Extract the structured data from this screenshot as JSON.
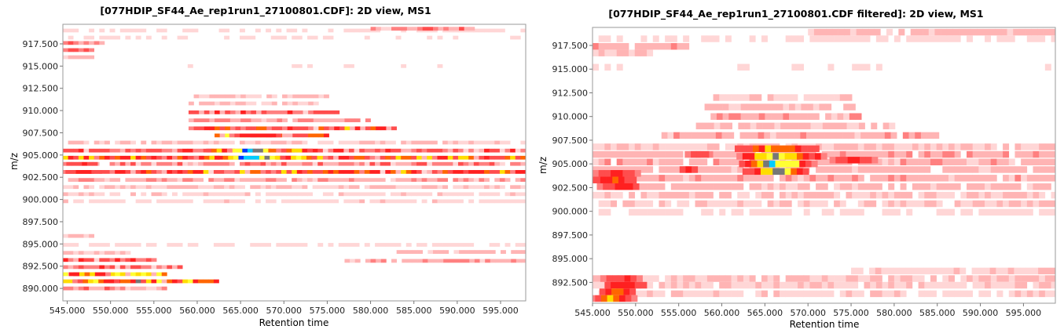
{
  "chart_data": [
    {
      "type": "heatmap",
      "title": "[077HDIP_SF44_Ae_rep1run1_27100801.CDF]: 2D view, MS1",
      "xlabel": "Retention time",
      "ylabel": "m/z",
      "xlim": [
        544.5,
        597.9
      ],
      "ylim": [
        888.6,
        919.7
      ],
      "xticks": [
        "545.000",
        "550.000",
        "555.000",
        "560.000",
        "565.000",
        "570.000",
        "575.000",
        "580.000",
        "585.000",
        "590.000",
        "595.000"
      ],
      "yticks": [
        "890.000",
        "892.500",
        "895.000",
        "897.500",
        "900.000",
        "902.500",
        "905.000",
        "907.500",
        "910.000",
        "912.500",
        "915.000",
        "917.500"
      ],
      "grid": false,
      "colormap": [
        "#ffffff",
        "#ffd6d6",
        "#ff8080",
        "#ff2020",
        "#ff6600",
        "#ffdd00",
        "#ffff33",
        "#0033ff",
        "#00ccff",
        "#777777"
      ],
      "cell_size": {
        "rt": 0.6,
        "mz": 0.42
      },
      "traces": [
        {
          "mz": 919.0,
          "rt": [
            544.5,
            597.9
          ],
          "level": 0.07
        },
        {
          "mz": 918.2,
          "rt": [
            544.5,
            597.9
          ],
          "level": 0.06
        },
        {
          "mz": 919.2,
          "rt": [
            580.0,
            592.0
          ],
          "level": 0.28
        },
        {
          "mz": 917.6,
          "rt": [
            544.5,
            549.0
          ],
          "level": 0.28
        },
        {
          "mz": 916.8,
          "rt": [
            544.5,
            548.0
          ],
          "level": 0.32
        },
        {
          "mz": 916.0,
          "rt": [
            544.5,
            548.0
          ],
          "level": 0.18
        },
        {
          "mz": 915.0,
          "rt": [
            544.5,
            597.9
          ],
          "level": 0.05
        },
        {
          "mz": 911.6,
          "rt": [
            559.0,
            575.0
          ],
          "level": 0.14
        },
        {
          "mz": 910.8,
          "rt": [
            559.0,
            574.0
          ],
          "level": 0.16
        },
        {
          "mz": 909.8,
          "rt": [
            559.0,
            576.0
          ],
          "level": 0.36
        },
        {
          "mz": 908.9,
          "rt": [
            559.0,
            580.0
          ],
          "level": 0.26
        },
        {
          "mz": 908.0,
          "rt": [
            559.0,
            583.0
          ],
          "level": 0.5
        },
        {
          "mz": 907.2,
          "rt": [
            562.0,
            575.0
          ],
          "level": 0.56
        },
        {
          "mz": 906.4,
          "rt": [
            544.5,
            597.9
          ],
          "level": 0.14
        },
        {
          "mz": 905.5,
          "rt": [
            544.5,
            597.9
          ],
          "level": 0.42
        },
        {
          "mz": 904.7,
          "rt": [
            544.5,
            597.9
          ],
          "level": 0.55
        },
        {
          "mz": 904.0,
          "rt": [
            544.5,
            597.9
          ],
          "level": 0.3
        },
        {
          "mz": 903.1,
          "rt": [
            544.5,
            597.9
          ],
          "level": 0.52
        },
        {
          "mz": 902.2,
          "rt": [
            544.5,
            597.9
          ],
          "level": 0.22
        },
        {
          "mz": 901.4,
          "rt": [
            544.5,
            597.9
          ],
          "level": 0.13
        },
        {
          "mz": 900.6,
          "rt": [
            544.5,
            597.9
          ],
          "level": 0.1
        },
        {
          "mz": 899.8,
          "rt": [
            544.5,
            597.9
          ],
          "level": 0.1
        },
        {
          "mz": 895.9,
          "rt": [
            544.5,
            548.0
          ],
          "level": 0.12
        },
        {
          "mz": 894.9,
          "rt": [
            544.5,
            597.9
          ],
          "level": 0.08
        },
        {
          "mz": 894.0,
          "rt": [
            544.5,
            552.0
          ],
          "level": 0.15
        },
        {
          "mz": 894.1,
          "rt": [
            583.0,
            597.9
          ],
          "level": 0.18
        },
        {
          "mz": 893.2,
          "rt": [
            544.5,
            555.0
          ],
          "level": 0.46
        },
        {
          "mz": 893.1,
          "rt": [
            577.0,
            597.9
          ],
          "level": 0.24
        },
        {
          "mz": 892.4,
          "rt": [
            544.5,
            558.0
          ],
          "level": 0.36
        },
        {
          "mz": 891.6,
          "rt": [
            544.5,
            556.0
          ],
          "level": 0.66
        },
        {
          "mz": 890.8,
          "rt": [
            544.5,
            562.0
          ],
          "level": 0.64
        },
        {
          "mz": 890.0,
          "rt": [
            544.5,
            556.0
          ],
          "level": 0.28
        }
      ],
      "peaks": [
        {
          "mz": 905.5,
          "rt": 566.0,
          "rt_width": 5.0,
          "level": 0.86
        },
        {
          "mz": 904.7,
          "rt": 566.0,
          "rt_width": 5.2,
          "level": 0.9
        },
        {
          "mz": 905.5,
          "rt": 571.0,
          "rt_width": 2.5,
          "level": 0.7
        },
        {
          "mz": 904.7,
          "rt": 571.5,
          "rt_width": 2.5,
          "level": 0.72
        },
        {
          "mz": 905.5,
          "rt": 562.0,
          "rt_width": 1.8,
          "level": 0.66
        },
        {
          "mz": 904.7,
          "rt": 561.0,
          "rt_width": 2.0,
          "level": 0.66
        },
        {
          "mz": 907.2,
          "rt": 566.5,
          "rt_width": 4.0,
          "level": 0.62
        },
        {
          "mz": 904.0,
          "rt": 546.0,
          "rt_width": 3.5,
          "level": 0.48
        },
        {
          "mz": 903.1,
          "rt": 546.5,
          "rt_width": 3.5,
          "level": 0.54
        },
        {
          "mz": 891.6,
          "rt": 547.0,
          "rt_width": 3.0,
          "level": 0.68
        },
        {
          "mz": 890.8,
          "rt": 548.0,
          "rt_width": 3.0,
          "level": 0.7
        }
      ]
    },
    {
      "type": "heatmap",
      "title": "[077HDIP_SF44_Ae_rep1run1_27100801.CDF filtered]: 2D view, MS1",
      "xlabel": "Retention time",
      "ylabel": "m/z",
      "xlim": [
        545.0,
        598.7
      ],
      "ylim": [
        890.3,
        919.4
      ],
      "xticks": [
        "545.000",
        "550.000",
        "555.000",
        "560.000",
        "565.000",
        "570.000",
        "575.000",
        "580.000",
        "585.000",
        "590.000",
        "595.000"
      ],
      "yticks": [
        "892.500",
        "895.000",
        "897.500",
        "900.000",
        "902.500",
        "905.000",
        "907.500",
        "910.000",
        "912.500",
        "915.000",
        "917.500"
      ],
      "grid": false,
      "colormap": [
        "#ffffff",
        "#ffd6d6",
        "#ff8080",
        "#ff2020",
        "#ff6600",
        "#ffdd00",
        "#ffff33",
        "#0033ff",
        "#00ccff",
        "#777777"
      ],
      "cell_size": {
        "rt": 0.7,
        "mz": 0.7
      },
      "traces": [
        {
          "mz": 918.9,
          "rt": [
            570.0,
            598.7
          ],
          "level": 0.18
        },
        {
          "mz": 918.2,
          "rt": [
            545.0,
            598.7
          ],
          "level": 0.08
        },
        {
          "mz": 917.4,
          "rt": [
            545.0,
            556.0
          ],
          "level": 0.2
        },
        {
          "mz": 916.7,
          "rt": [
            545.0,
            552.0
          ],
          "level": 0.14
        },
        {
          "mz": 915.2,
          "rt": [
            545.0,
            598.7
          ],
          "level": 0.05
        },
        {
          "mz": 912.0,
          "rt": [
            559.0,
            575.0
          ],
          "level": 0.12
        },
        {
          "mz": 911.0,
          "rt": [
            558.0,
            575.0
          ],
          "level": 0.15
        },
        {
          "mz": 910.0,
          "rt": [
            558.0,
            576.0
          ],
          "level": 0.24
        },
        {
          "mz": 909.0,
          "rt": [
            557.0,
            580.0
          ],
          "level": 0.18
        },
        {
          "mz": 908.0,
          "rt": [
            553.0,
            585.0
          ],
          "level": 0.22
        },
        {
          "mz": 906.8,
          "rt": [
            545.0,
            598.7
          ],
          "level": 0.13
        },
        {
          "mz": 906.0,
          "rt": [
            545.0,
            598.7
          ],
          "level": 0.2
        },
        {
          "mz": 905.2,
          "rt": [
            545.0,
            598.7
          ],
          "level": 0.2
        },
        {
          "mz": 904.4,
          "rt": [
            545.0,
            598.7
          ],
          "level": 0.18
        },
        {
          "mz": 903.5,
          "rt": [
            545.0,
            598.7
          ],
          "level": 0.2
        },
        {
          "mz": 902.6,
          "rt": [
            545.0,
            598.7
          ],
          "level": 0.18
        },
        {
          "mz": 901.7,
          "rt": [
            545.0,
            598.7
          ],
          "level": 0.13
        },
        {
          "mz": 900.8,
          "rt": [
            545.0,
            598.7
          ],
          "level": 0.12
        },
        {
          "mz": 899.9,
          "rt": [
            545.0,
            598.7
          ],
          "level": 0.08
        },
        {
          "mz": 897.0,
          "rt": [
            545.0,
            598.7
          ],
          "level": 0.04
        },
        {
          "mz": 893.7,
          "rt": [
            575.0,
            598.7
          ],
          "level": 0.12
        },
        {
          "mz": 892.9,
          "rt": [
            545.0,
            598.7
          ],
          "level": 0.14
        },
        {
          "mz": 892.2,
          "rt": [
            545.0,
            598.7
          ],
          "level": 0.12
        },
        {
          "mz": 891.3,
          "rt": [
            545.0,
            598.7
          ],
          "level": 0.1
        }
      ],
      "peaks": [
        {
          "mz": 906.6,
          "rt": 566.0,
          "rt_width": 6.5,
          "level": 0.62
        },
        {
          "mz": 905.8,
          "rt": 566.5,
          "rt_width": 6.0,
          "level": 0.78
        },
        {
          "mz": 905.0,
          "rt": 566.0,
          "rt_width": 5.0,
          "level": 0.9
        },
        {
          "mz": 904.2,
          "rt": 566.0,
          "rt_width": 4.5,
          "level": 0.78
        },
        {
          "mz": 905.4,
          "rt": 575.0,
          "rt_width": 4.0,
          "level": 0.5
        },
        {
          "mz": 906.0,
          "rt": 557.0,
          "rt_width": 2.5,
          "level": 0.45
        },
        {
          "mz": 904.4,
          "rt": 556.0,
          "rt_width": 2.0,
          "level": 0.45
        },
        {
          "mz": 904.0,
          "rt": 547.5,
          "rt_width": 4.0,
          "level": 0.5
        },
        {
          "mz": 903.3,
          "rt": 547.0,
          "rt_width": 4.0,
          "level": 0.55
        },
        {
          "mz": 902.6,
          "rt": 548.0,
          "rt_width": 4.0,
          "level": 0.5
        },
        {
          "mz": 892.9,
          "rt": 548.0,
          "rt_width": 3.5,
          "level": 0.5
        },
        {
          "mz": 892.2,
          "rt": 548.5,
          "rt_width": 3.5,
          "level": 0.55
        },
        {
          "mz": 891.5,
          "rt": 547.5,
          "rt_width": 3.0,
          "level": 0.6
        },
        {
          "mz": 890.8,
          "rt": 547.0,
          "rt_width": 3.0,
          "level": 0.66
        }
      ]
    }
  ]
}
